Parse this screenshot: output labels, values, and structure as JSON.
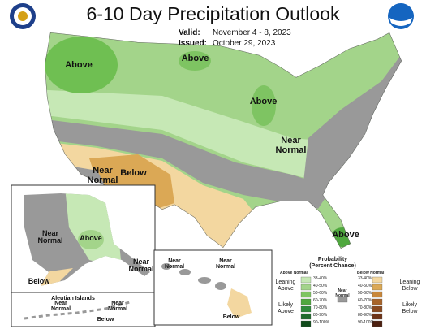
{
  "header": {
    "title": "6-10 Day Precipitation Outlook",
    "valid_label": "Valid:",
    "valid": "November 4 - 8, 2023",
    "issued_label": "Issued:",
    "issued": "October 29, 2023"
  },
  "map_labels": [
    "Above",
    "Above",
    "Above",
    "Near Normal",
    "Near Normal",
    "Below",
    "Above",
    "Near Normal",
    "Above",
    "Near Normal",
    "Below",
    "Aleutian Islands",
    "Near Normal",
    "Near Normal",
    "Below",
    "Near Normal",
    "Near Normal",
    "Below"
  ],
  "legend": {
    "title": "Probability (Percent Chance)",
    "above_header": "Above Normal",
    "below_header": "Below Normal",
    "near_label": "Near Normal",
    "leaning_above": "Leaning Above",
    "likely_above": "Likely Above",
    "leaning_below": "Leaning Below",
    "likely_below": "Likely Below",
    "above_ranges": [
      "33-40%",
      "40-50%",
      "50-60%",
      "60-70%",
      "70-80%",
      "80-90%",
      "90-100%"
    ],
    "below_ranges": [
      "33-40%",
      "40-50%",
      "50-60%",
      "60-70%",
      "70-80%",
      "80-90%",
      "90-100%"
    ]
  }
}
